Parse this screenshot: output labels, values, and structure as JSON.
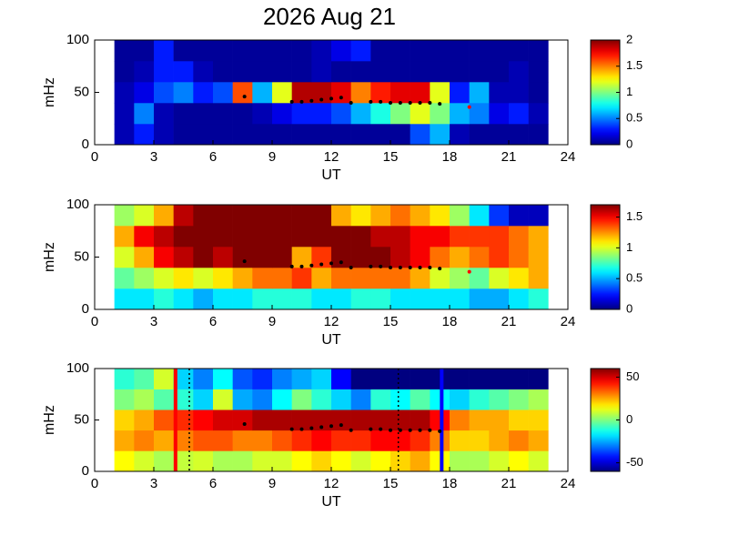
{
  "chart_data": [
    {
      "type": "heatmap",
      "title": "2026 Aug 21",
      "xlabel": "UT",
      "ylabel": "mHz",
      "xlim": [
        0,
        24
      ],
      "xticks": [
        0,
        3,
        6,
        9,
        12,
        15,
        18,
        21,
        24
      ],
      "ylim": [
        0,
        100
      ],
      "yticks": [
        0,
        50,
        100
      ],
      "x": [
        1,
        2,
        3,
        4,
        5,
        6,
        7,
        8,
        9,
        10,
        11,
        12,
        13,
        14,
        15,
        16,
        17,
        18,
        19,
        20,
        21,
        22,
        23
      ],
      "y": [
        0,
        20,
        40,
        60,
        80,
        100
      ],
      "zlim": [
        0,
        2
      ],
      "zticks": [
        0,
        0.5,
        1,
        1.5,
        2
      ],
      "colormap": "jet",
      "z": [
        [
          0.1,
          0.3,
          0.1,
          0.05,
          0.05,
          0.05,
          0.05,
          0.05,
          0.05,
          0.05,
          0.05,
          0.05,
          0.05,
          0.05,
          0.05,
          0.4,
          0.6,
          0.1,
          0.05,
          0.05,
          0.05,
          0.05
        ],
        [
          0.1,
          0.5,
          0.1,
          0.05,
          0.05,
          0.05,
          0.05,
          0.1,
          0.2,
          0.3,
          0.3,
          0.4,
          0.6,
          0.8,
          1.0,
          1.2,
          1.0,
          0.6,
          0.5,
          0.2,
          0.3,
          0.1
        ],
        [
          0.1,
          0.2,
          0.4,
          0.5,
          0.3,
          0.4,
          1.6,
          0.6,
          1.2,
          1.9,
          1.9,
          1.8,
          1.5,
          1.7,
          1.8,
          1.8,
          1.2,
          0.3,
          0.6,
          0.1,
          0.1,
          0.05
        ],
        [
          0.05,
          0.1,
          0.3,
          0.3,
          0.1,
          0.05,
          0.05,
          0.05,
          0.05,
          0.05,
          0.1,
          0.05,
          0.05,
          0.05,
          0.05,
          0.05,
          0.05,
          0.05,
          0.05,
          0.05,
          0.1,
          0.05
        ],
        [
          0.05,
          0.05,
          0.3,
          0.05,
          0.05,
          0.05,
          0.05,
          0.05,
          0.05,
          0.05,
          0.1,
          0.2,
          0.3,
          0.05,
          0.05,
          0.05,
          0.05,
          0.05,
          0.05,
          0.05,
          0.05,
          0.05
        ]
      ],
      "markers": {
        "color": "#000000",
        "x": [
          7.6,
          10,
          10.5,
          11,
          11.5,
          12,
          12.5,
          13,
          14,
          14.5,
          15,
          15.5,
          16,
          16.5,
          17,
          17.5
        ],
        "y": [
          46,
          41,
          41,
          42,
          43,
          44,
          45,
          40,
          41,
          41,
          40,
          40,
          40,
          40,
          40,
          39
        ]
      },
      "extra_marker": {
        "color": "#ff0000",
        "x": 19,
        "y": 36
      }
    },
    {
      "type": "heatmap",
      "xlabel": "UT",
      "ylabel": "mHz",
      "xlim": [
        0,
        24
      ],
      "xticks": [
        0,
        3,
        6,
        9,
        12,
        15,
        18,
        21,
        24
      ],
      "ylim": [
        0,
        100
      ],
      "yticks": [
        0,
        50,
        100
      ],
      "x": [
        1,
        2,
        3,
        4,
        5,
        6,
        7,
        8,
        9,
        10,
        11,
        12,
        13,
        14,
        15,
        16,
        17,
        18,
        19,
        20,
        21,
        22,
        23
      ],
      "y": [
        0,
        20,
        40,
        60,
        80,
        100
      ],
      "zlim": [
        0,
        1.7
      ],
      "zticks": [
        0,
        0.5,
        1,
        1.5
      ],
      "colormap": "jet",
      "z": [
        [
          0.6,
          0.6,
          0.7,
          0.6,
          0.5,
          0.6,
          0.6,
          0.7,
          0.7,
          0.7,
          0.6,
          0.6,
          0.7,
          0.7,
          0.6,
          0.6,
          0.6,
          0.6,
          0.5,
          0.5,
          0.6,
          0.7
        ],
        [
          0.8,
          0.9,
          1.0,
          1.1,
          1.0,
          1.1,
          1.2,
          1.3,
          1.3,
          1.4,
          1.2,
          1.3,
          1.3,
          1.3,
          1.3,
          1.2,
          1.0,
          0.9,
          0.8,
          1.0,
          1.1,
          1.2
        ],
        [
          1.0,
          1.2,
          1.5,
          1.6,
          1.7,
          1.6,
          1.7,
          1.7,
          1.7,
          1.2,
          1.4,
          1.7,
          1.7,
          1.7,
          1.6,
          1.5,
          1.3,
          1.2,
          1.3,
          1.4,
          1.3,
          1.2
        ],
        [
          1.2,
          1.5,
          1.6,
          1.7,
          1.7,
          1.7,
          1.7,
          1.7,
          1.7,
          1.7,
          1.7,
          1.7,
          1.7,
          1.6,
          1.6,
          1.5,
          1.5,
          1.4,
          1.4,
          1.4,
          1.3,
          1.2
        ],
        [
          0.9,
          1.0,
          1.2,
          1.6,
          1.7,
          1.7,
          1.7,
          1.7,
          1.7,
          1.7,
          1.7,
          1.2,
          1.1,
          1.2,
          1.3,
          1.2,
          1.1,
          0.9,
          0.6,
          0.3,
          0.1,
          0.1
        ]
      ],
      "markers": {
        "color": "#000000",
        "x": [
          7.6,
          10,
          10.5,
          11,
          11.5,
          12,
          12.5,
          13,
          14,
          14.5,
          15,
          15.5,
          16,
          16.5,
          17,
          17.5
        ],
        "y": [
          46,
          41,
          41,
          42,
          43,
          44,
          45,
          40,
          41,
          41,
          40,
          40,
          40,
          40,
          40,
          39
        ]
      },
      "extra_marker": {
        "color": "#ff0000",
        "x": 19,
        "y": 36
      }
    },
    {
      "type": "heatmap",
      "xlabel": "UT",
      "ylabel": "mHz",
      "xlim": [
        0,
        24
      ],
      "xticks": [
        0,
        3,
        6,
        9,
        12,
        15,
        18,
        21,
        24
      ],
      "ylim": [
        0,
        100
      ],
      "yticks": [
        0,
        50,
        100
      ],
      "x": [
        1,
        2,
        3,
        4,
        5,
        6,
        7,
        8,
        9,
        10,
        11,
        12,
        13,
        14,
        15,
        16,
        17,
        18,
        19,
        20,
        21,
        22,
        23
      ],
      "y": [
        0,
        20,
        40,
        60,
        80,
        100
      ],
      "zlim": [
        -60,
        60
      ],
      "zticks": [
        -50,
        0,
        50
      ],
      "colormap": "jet",
      "z": [
        [
          15,
          10,
          5,
          8,
          10,
          5,
          5,
          10,
          10,
          15,
          20,
          15,
          10,
          15,
          20,
          25,
          15,
          5,
          5,
          10,
          15,
          10
        ],
        [
          25,
          30,
          25,
          30,
          35,
          35,
          30,
          30,
          35,
          40,
          45,
          40,
          40,
          45,
          45,
          40,
          30,
          20,
          20,
          25,
          30,
          25
        ],
        [
          20,
          25,
          35,
          40,
          45,
          50,
          50,
          55,
          55,
          55,
          55,
          55,
          55,
          55,
          55,
          55,
          45,
          30,
          25,
          25,
          20,
          20
        ],
        [
          0,
          5,
          -5,
          -10,
          -20,
          10,
          -25,
          -30,
          -15,
          0,
          -10,
          -20,
          -30,
          -10,
          -15,
          -5,
          -15,
          -20,
          -10,
          -5,
          0,
          5
        ],
        [
          -10,
          -5,
          10,
          -20,
          -30,
          -15,
          -35,
          -40,
          -30,
          -25,
          -20,
          -45,
          -60,
          -60,
          -60,
          -60,
          -60,
          -60,
          -60,
          -60,
          -60,
          -60
        ]
      ],
      "markers": {
        "color": "#000000",
        "x": [
          7.6,
          10,
          10.5,
          11,
          11.5,
          12,
          12.5,
          13,
          14,
          14.5,
          15,
          15.5,
          16,
          16.5,
          17,
          17.5
        ],
        "y": [
          46,
          41,
          41,
          42,
          43,
          44,
          45,
          40,
          41,
          41,
          40,
          40,
          40,
          40,
          40,
          39
        ]
      },
      "vlines": [
        {
          "x": 4.1,
          "color": "#ff0000"
        },
        {
          "x": 17.6,
          "color": "#0000ff"
        }
      ],
      "dotted_vlines": [
        4.8,
        15.4
      ]
    }
  ]
}
